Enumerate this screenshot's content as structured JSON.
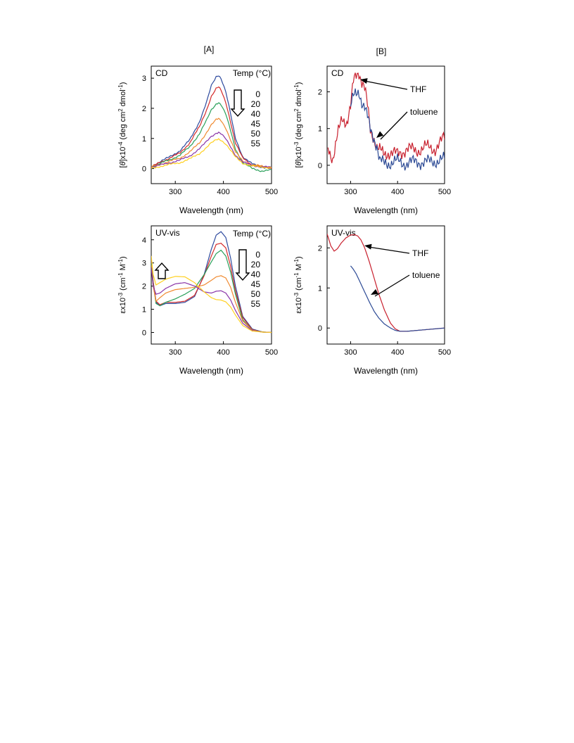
{
  "panel_labels": {
    "A": "[A]",
    "B": "[B]"
  },
  "chart_data": [
    {
      "id": "A-CD",
      "type": "line",
      "corner_label": "CD",
      "legend_title": "Temp (°C)",
      "xlabel": "Wavelength  (nm)",
      "ylabel": "[θ]x10^-4 (deg cm^2 dmol^-1)",
      "xlim": [
        250,
        500
      ],
      "ylim": [
        -0.5,
        3.4
      ],
      "xticks": [
        300,
        400,
        500
      ],
      "yticks": [
        0,
        1,
        2,
        3
      ],
      "arrow": "down",
      "series": [
        {
          "name": "0",
          "color": "#2e4a9e",
          "x": [
            250,
            270,
            290,
            310,
            330,
            350,
            365,
            375,
            385,
            390,
            395,
            405,
            415,
            425,
            440,
            460,
            480,
            500
          ],
          "y": [
            0.05,
            0.25,
            0.4,
            0.6,
            0.95,
            1.55,
            2.2,
            2.75,
            3.05,
            3.1,
            3.0,
            2.55,
            1.8,
            1.0,
            0.4,
            0.15,
            0.05,
            0.02
          ]
        },
        {
          "name": "20",
          "color": "#d42a2a",
          "x": [
            250,
            270,
            290,
            310,
            330,
            350,
            365,
            375,
            385,
            390,
            395,
            405,
            415,
            425,
            440,
            460,
            480,
            500
          ],
          "y": [
            0.05,
            0.22,
            0.36,
            0.52,
            0.85,
            1.38,
            1.95,
            2.4,
            2.65,
            2.7,
            2.6,
            2.2,
            1.55,
            0.85,
            0.35,
            0.12,
            0.05,
            0.02
          ]
        },
        {
          "name": "40",
          "color": "#2aa05a",
          "x": [
            250,
            270,
            290,
            310,
            330,
            350,
            365,
            375,
            385,
            390,
            395,
            405,
            415,
            425,
            440,
            460,
            480,
            500
          ],
          "y": [
            0.05,
            0.18,
            0.3,
            0.45,
            0.72,
            1.15,
            1.6,
            1.95,
            2.15,
            2.2,
            2.12,
            1.8,
            1.25,
            0.65,
            0.2,
            0.0,
            -0.08,
            -0.05
          ]
        },
        {
          "name": "45",
          "color": "#f08a30",
          "x": [
            250,
            270,
            290,
            310,
            330,
            350,
            365,
            375,
            385,
            390,
            395,
            405,
            415,
            425,
            440,
            460,
            480,
            500
          ],
          "y": [
            0.05,
            0.15,
            0.25,
            0.35,
            0.55,
            0.85,
            1.2,
            1.45,
            1.62,
            1.65,
            1.6,
            1.35,
            0.95,
            0.55,
            0.25,
            0.12,
            0.08,
            0.06
          ]
        },
        {
          "name": "50",
          "color": "#8a35a8",
          "x": [
            250,
            270,
            290,
            310,
            330,
            350,
            365,
            375,
            385,
            390,
            395,
            405,
            415,
            425,
            440,
            460,
            480,
            500
          ],
          "y": [
            0.05,
            0.12,
            0.2,
            0.28,
            0.42,
            0.65,
            0.9,
            1.08,
            1.18,
            1.2,
            1.15,
            0.98,
            0.72,
            0.45,
            0.22,
            0.1,
            0.06,
            0.04
          ]
        },
        {
          "name": "55",
          "color": "#ffd020",
          "x": [
            250,
            270,
            290,
            310,
            330,
            350,
            365,
            375,
            385,
            390,
            395,
            405,
            415,
            425,
            440,
            460,
            480,
            500
          ],
          "y": [
            0.0,
            0.08,
            0.14,
            0.2,
            0.32,
            0.5,
            0.7,
            0.85,
            0.95,
            0.98,
            0.95,
            0.82,
            0.6,
            0.38,
            0.18,
            0.08,
            0.05,
            0.04
          ]
        }
      ]
    },
    {
      "id": "B-CD",
      "type": "line",
      "corner_label": "CD",
      "xlabel": "Wavelength  (nm)",
      "ylabel": "[θ]x10^-3 (deg cm^2 dmol^-1)",
      "xlim": [
        250,
        500
      ],
      "ylim": [
        -0.5,
        2.7
      ],
      "xticks": [
        300,
        400,
        500
      ],
      "yticks": [
        0,
        1,
        2
      ],
      "series": [
        {
          "name": "THF",
          "color": "#c8202e",
          "x": [
            252,
            262,
            272,
            282,
            292,
            300,
            306,
            312,
            318,
            324,
            330,
            336,
            342,
            350,
            356,
            362,
            370,
            380,
            400,
            420,
            440,
            460,
            480,
            500
          ],
          "y": [
            0.45,
            0.2,
            0.8,
            1.25,
            1.2,
            1.6,
            2.25,
            2.45,
            2.55,
            2.3,
            2.1,
            1.6,
            0.95,
            0.75,
            0.5,
            0.4,
            0.3,
            0.35,
            0.3,
            0.45,
            0.4,
            0.5,
            0.45,
            0.75
          ]
        },
        {
          "name": "toluene",
          "color": "#2c4a95",
          "x": [
            300,
            306,
            312,
            318,
            324,
            330,
            336,
            342,
            350,
            356,
            362,
            372,
            385,
            400,
            420,
            440,
            460,
            480,
            500
          ],
          "y": [
            1.65,
            1.85,
            1.9,
            2.0,
            1.75,
            1.6,
            1.3,
            0.95,
            0.75,
            0.55,
            0.1,
            0.05,
            0.08,
            0.1,
            0.05,
            0.1,
            0.08,
            0.12,
            0.15
          ]
        }
      ]
    },
    {
      "id": "A-UV",
      "type": "line",
      "corner_label": "UV-vis",
      "legend_title": "Temp (°C)",
      "xlabel": "Wavelength  (nm)",
      "ylabel": "εx10^-3 (cm^-1 M^-1)",
      "xlim": [
        250,
        500
      ],
      "ylim": [
        -0.5,
        4.6
      ],
      "xticks": [
        300,
        400,
        500
      ],
      "yticks": [
        0,
        1,
        2,
        3,
        4
      ],
      "arrows": [
        "up",
        "down"
      ],
      "series": [
        {
          "name": "0",
          "color": "#2e4a9e",
          "x": [
            250,
            254,
            260,
            268,
            280,
            300,
            320,
            340,
            360,
            375,
            385,
            395,
            405,
            415,
            425,
            440,
            460,
            480,
            500
          ],
          "y": [
            3.2,
            2.2,
            1.3,
            1.15,
            1.25,
            1.25,
            1.3,
            1.55,
            2.5,
            3.6,
            4.2,
            4.35,
            4.1,
            3.2,
            2.0,
            0.7,
            0.15,
            0.03,
            0.0
          ]
        },
        {
          "name": "20",
          "color": "#d42a2a",
          "x": [
            250,
            254,
            260,
            268,
            280,
            300,
            320,
            340,
            360,
            375,
            385,
            395,
            405,
            415,
            425,
            440,
            460,
            480,
            500
          ],
          "y": [
            3.1,
            2.2,
            1.35,
            1.2,
            1.3,
            1.3,
            1.35,
            1.6,
            2.45,
            3.3,
            3.8,
            3.85,
            3.65,
            2.85,
            1.8,
            0.65,
            0.12,
            0.02,
            0.0
          ]
        },
        {
          "name": "40",
          "color": "#2aa05a",
          "x": [
            250,
            254,
            260,
            268,
            280,
            300,
            320,
            340,
            360,
            375,
            385,
            395,
            405,
            415,
            425,
            440,
            460,
            480,
            500
          ],
          "y": [
            3.0,
            2.1,
            1.25,
            1.15,
            1.3,
            1.45,
            1.65,
            1.9,
            2.5,
            3.05,
            3.4,
            3.55,
            3.3,
            2.6,
            1.65,
            0.55,
            0.1,
            0.02,
            0.0
          ]
        },
        {
          "name": "45",
          "color": "#f08a30",
          "x": [
            250,
            254,
            260,
            268,
            280,
            300,
            320,
            340,
            360,
            375,
            385,
            395,
            405,
            415,
            425,
            440,
            460,
            480,
            500
          ],
          "y": [
            2.9,
            2.0,
            1.35,
            1.5,
            1.7,
            1.85,
            1.9,
            1.95,
            2.05,
            2.25,
            2.4,
            2.45,
            2.35,
            1.95,
            1.3,
            0.5,
            0.1,
            0.02,
            0.0
          ]
        },
        {
          "name": "50",
          "color": "#8a35a8",
          "x": [
            250,
            254,
            260,
            268,
            280,
            300,
            320,
            340,
            360,
            375,
            385,
            395,
            405,
            415,
            425,
            440,
            460,
            480,
            500
          ],
          "y": [
            2.8,
            2.0,
            1.65,
            1.7,
            1.9,
            2.1,
            2.15,
            2.0,
            1.75,
            1.7,
            1.78,
            1.8,
            1.7,
            1.4,
            0.95,
            0.4,
            0.08,
            0.02,
            0.0
          ]
        },
        {
          "name": "55",
          "color": "#ffd020",
          "x": [
            250,
            254,
            260,
            268,
            280,
            300,
            320,
            340,
            360,
            375,
            385,
            395,
            405,
            415,
            425,
            440,
            460,
            480,
            500
          ],
          "y": [
            3.3,
            2.5,
            2.05,
            2.15,
            2.3,
            2.42,
            2.4,
            2.15,
            1.75,
            1.5,
            1.42,
            1.4,
            1.32,
            1.1,
            0.75,
            0.3,
            0.06,
            0.02,
            0.0
          ]
        }
      ]
    },
    {
      "id": "B-UV",
      "type": "line",
      "corner_label": "UV-vis",
      "xlabel": "Wavelength  (nm)",
      "ylabel": "εx10^-3 (cm^-1 M^-1)",
      "xlim": [
        250,
        500
      ],
      "ylim": [
        -0.4,
        2.55
      ],
      "xticks": [
        300,
        400,
        500
      ],
      "yticks": [
        0,
        1,
        2
      ],
      "series": [
        {
          "name": "THF",
          "color": "#c8202e",
          "x": [
            250,
            258,
            265,
            272,
            280,
            290,
            300,
            308,
            315,
            322,
            330,
            340,
            350,
            360,
            372,
            385,
            395,
            405,
            420,
            440,
            460,
            480,
            500
          ],
          "y": [
            2.35,
            2.05,
            1.92,
            1.98,
            2.12,
            2.25,
            2.32,
            2.33,
            2.3,
            2.2,
            2.0,
            1.65,
            1.25,
            0.85,
            0.45,
            0.12,
            -0.02,
            -0.08,
            -0.08,
            -0.06,
            -0.04,
            -0.02,
            0.0
          ]
        },
        {
          "name": "toluene",
          "color": "#2c4a95",
          "x": [
            300,
            305,
            312,
            320,
            330,
            340,
            350,
            360,
            372,
            385,
            395,
            405,
            420,
            440,
            460,
            480,
            500
          ],
          "y": [
            1.55,
            1.48,
            1.35,
            1.15,
            0.9,
            0.65,
            0.42,
            0.25,
            0.1,
            0.0,
            -0.06,
            -0.08,
            -0.08,
            -0.06,
            -0.04,
            -0.02,
            0.0
          ]
        }
      ]
    }
  ],
  "annotations": {
    "thf": "THF",
    "toluene": "toluene"
  }
}
